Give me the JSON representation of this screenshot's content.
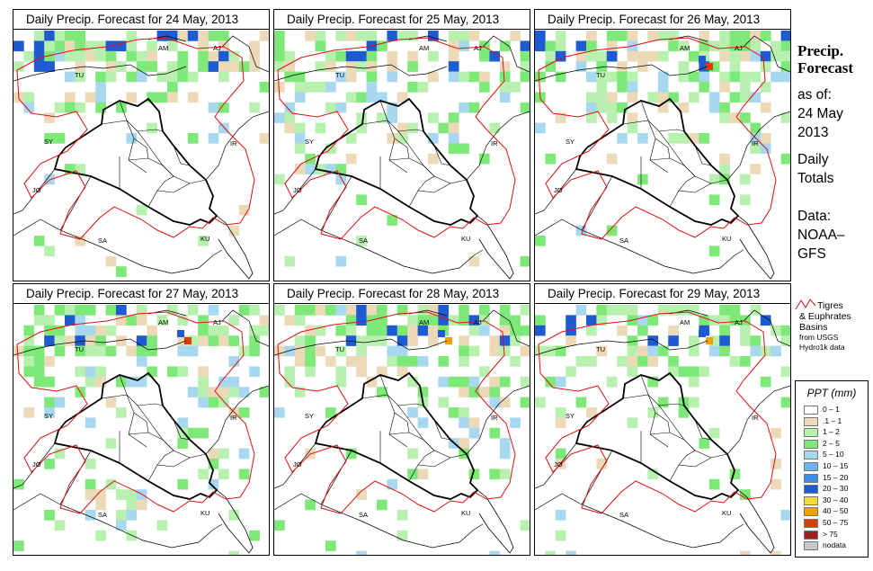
{
  "panels": [
    {
      "title": "Daily Precip. Forecast for  24 May, 2013",
      "day": 0
    },
    {
      "title": "Daily Precip. Forecast for  25 May, 2013",
      "day": 1
    },
    {
      "title": "Daily Precip. Forecast for  26 May, 2013",
      "day": 2
    },
    {
      "title": "Daily Precip. Forecast for  27 May, 2013",
      "day": 3
    },
    {
      "title": "Daily Precip. Forecast for  28 May, 2013",
      "day": 4
    },
    {
      "title": "Daily Precip. Forecast for  29 May, 2013",
      "day": 5
    }
  ],
  "country_labels": [
    "AM",
    "AJ",
    "TU",
    "SY",
    "IR",
    "JO",
    "SA",
    "KU"
  ],
  "sidebar": {
    "heading_line1": "Precip.",
    "heading_line2": "Forecast",
    "asof_line1": "as of:",
    "asof_line2": "24 May",
    "asof_line3": "2013",
    "daily_line1": "Daily",
    "daily_line2": "Totals",
    "data_line1": "Data:",
    "data_line2": "NOAA–",
    "data_line3": "GFS"
  },
  "basin_legend": {
    "line1": "Tigres",
    "line2": "& Euphrates",
    "line3": "Basins",
    "line4": "from USGS",
    "line5": "Hydro1k data"
  },
  "legend": {
    "title": "PPT (mm)",
    "items": [
      {
        "label": "0 – 1",
        "color": "#ffffff"
      },
      {
        "label": ".1 – 1",
        "color": "#ecd9b8"
      },
      {
        "label": "1 – 2",
        "color": "#b8f0b0"
      },
      {
        "label": "2 – 5",
        "color": "#7ee878"
      },
      {
        "label": "5 – 10",
        "color": "#a8d8f0"
      },
      {
        "label": "10 – 15",
        "color": "#6eb4f0"
      },
      {
        "label": "15 – 20",
        "color": "#3c8ce8"
      },
      {
        "label": "20 – 30",
        "color": "#1e5ad2"
      },
      {
        "label": "30 – 40",
        "color": "#f0dc3c"
      },
      {
        "label": "40 – 50",
        "color": "#f0a000"
      },
      {
        "label": "50 – 75",
        "color": "#e03c00"
      },
      {
        "label": "> 75",
        "color": "#a02020"
      },
      {
        "label": "nodata",
        "color": "#c8c8c8"
      }
    ]
  }
}
